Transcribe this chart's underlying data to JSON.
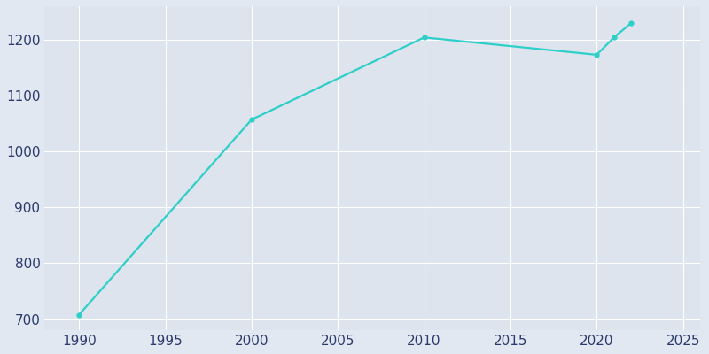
{
  "years": [
    1990,
    2000,
    2010,
    2020,
    2021,
    2022
  ],
  "population": [
    708,
    1057,
    1204,
    1173,
    1204,
    1230
  ],
  "line_color": "#2ECFC8",
  "marker": "o",
  "marker_size": 3.5,
  "line_width": 1.6,
  "bg_color": "#E2E8F2",
  "plot_bg_color": "#DDE4EE",
  "grid_color": "#ffffff",
  "tick_label_color": "#2B3A6B",
  "xlim": [
    1988,
    2026
  ],
  "ylim": [
    680,
    1260
  ],
  "xticks": [
    1990,
    1995,
    2000,
    2005,
    2010,
    2015,
    2020,
    2025
  ],
  "yticks": [
    700,
    800,
    900,
    1000,
    1100,
    1200
  ],
  "tick_fontsize": 11
}
